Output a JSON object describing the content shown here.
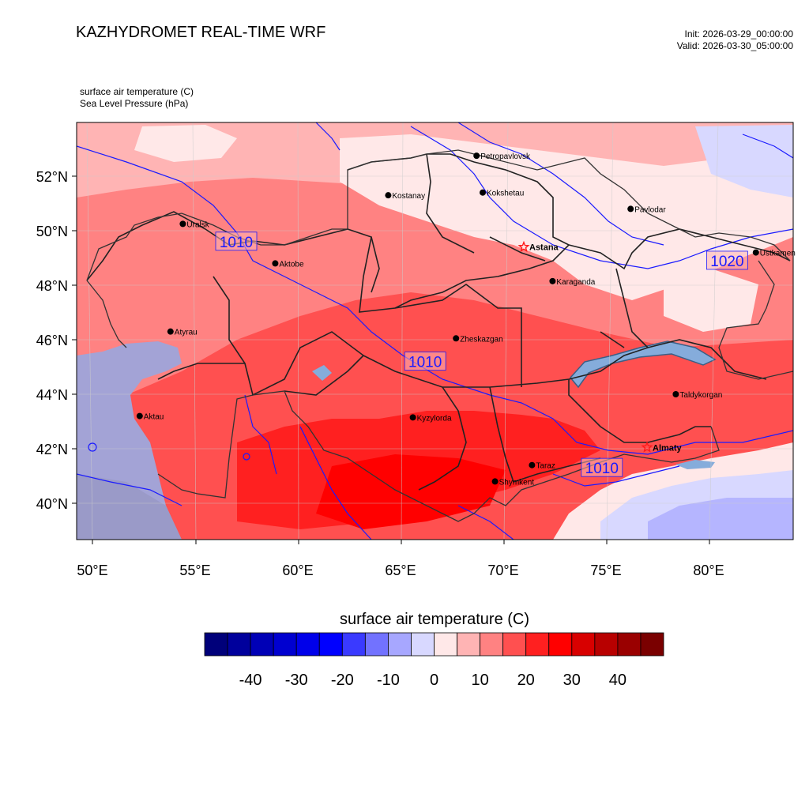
{
  "header": {
    "title": "KAZHYDROMET REAL-TIME WRF",
    "init": "Init: 2026-03-29_00:00:00",
    "valid": "Valid: 2026-03-30_05:00:00",
    "field1": "surface air temperature   (C)",
    "field2": "Sea Level Pressure   (hPa)"
  },
  "axes": {
    "lat_labels": [
      "52°N",
      "50°N",
      "48°N",
      "46°N",
      "44°N",
      "42°N",
      "40°N"
    ],
    "lon_labels": [
      "50°E",
      "55°E",
      "60°E",
      "65°E",
      "70°E",
      "75°E",
      "80°E"
    ]
  },
  "cities": [
    {
      "name": "Uralsk",
      "lon": 54.4,
      "lat": 50.25,
      "capital": false
    },
    {
      "name": "Aktobe",
      "lon": 58.9,
      "lat": 48.8,
      "capital": false
    },
    {
      "name": "Atyrau",
      "lon": 53.8,
      "lat": 46.3,
      "capital": false
    },
    {
      "name": "Aktau",
      "lon": 52.3,
      "lat": 43.2,
      "capital": false
    },
    {
      "name": "Kostanay",
      "lon": 64.4,
      "lat": 51.3,
      "capital": false
    },
    {
      "name": "Petropavlovsk",
      "lon": 68.7,
      "lat": 52.75,
      "capital": false
    },
    {
      "name": "Kokshetau",
      "lon": 69.0,
      "lat": 51.4,
      "capital": false
    },
    {
      "name": "Astana",
      "lon": 71.0,
      "lat": 49.4,
      "capital": true
    },
    {
      "name": "Pavlodar",
      "lon": 76.2,
      "lat": 50.8,
      "capital": false
    },
    {
      "name": "Ustkamen",
      "lon": 82.3,
      "lat": 49.2,
      "capital": false
    },
    {
      "name": "Karaganda",
      "lon": 72.4,
      "lat": 48.15,
      "capital": false
    },
    {
      "name": "Zheskazgan",
      "lon": 67.7,
      "lat": 46.05,
      "capital": false
    },
    {
      "name": "Kyzylorda",
      "lon": 65.6,
      "lat": 43.15,
      "capital": false
    },
    {
      "name": "Taldykorgan",
      "lon": 78.4,
      "lat": 44.0,
      "capital": false
    },
    {
      "name": "Almaty",
      "lon": 77.0,
      "lat": 42.05,
      "capital": true
    },
    {
      "name": "Taraz",
      "lon": 71.4,
      "lat": 41.4,
      "capital": false
    },
    {
      "name": "Shymkent",
      "lon": 69.6,
      "lat": 40.8,
      "capital": false
    }
  ],
  "isobar_labels": [
    {
      "text": "1010",
      "lon": 57.0,
      "lat": 49.6
    },
    {
      "text": "1010",
      "lon": 66.2,
      "lat": 45.2
    },
    {
      "text": "1010",
      "lon": 74.8,
      "lat": 41.3
    },
    {
      "text": "1020",
      "lon": 80.9,
      "lat": 48.9
    }
  ],
  "colorbar": {
    "title": "surface air temperature  (C)",
    "labels": [
      "-40",
      "-30",
      "-20",
      "-10",
      "0",
      "10",
      "20",
      "30",
      "40"
    ],
    "colors": [
      "#00007a",
      "#00009c",
      "#0000b6",
      "#0000d0",
      "#0000ea",
      "#0000ff",
      "#3a3aff",
      "#7272ff",
      "#a7a7ff",
      "#d8d8ff",
      "#ffe8e8",
      "#ffb4b4",
      "#ff8282",
      "#ff5050",
      "#ff2020",
      "#ff0000",
      "#d80000",
      "#b80000",
      "#9a0000",
      "#7a0000"
    ]
  },
  "colors": {
    "isobar": "#1a1aff",
    "sea": "#a3a3d6",
    "lake": "#85acdb",
    "border": "#222222",
    "capital_star": "#ff1a1a"
  }
}
